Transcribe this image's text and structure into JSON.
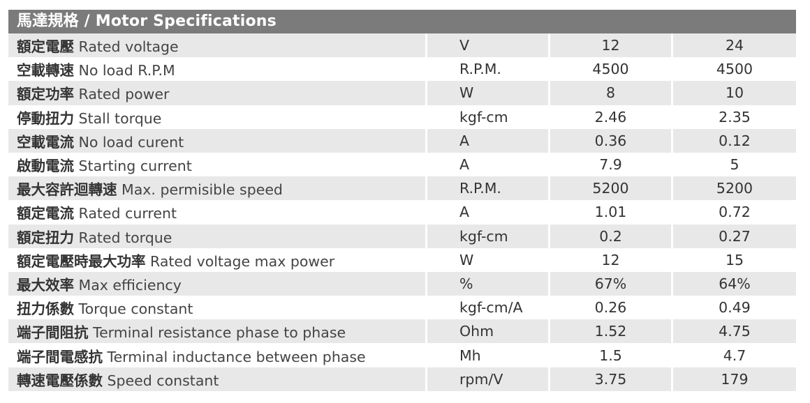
{
  "title": "馬達規格 / Motor Specifications",
  "rows": [
    {
      "zh": "額定電壓",
      "en": "Rated voltage",
      "unit": "V",
      "v1": "12",
      "v2": "24"
    },
    {
      "zh": "空載轉速",
      "en": "No load R.P.M",
      "unit": "R.P.M.",
      "v1": "4500",
      "v2": "4500"
    },
    {
      "zh": "額定功率",
      "en": "Rated power",
      "unit": "W",
      "v1": "8",
      "v2": "10"
    },
    {
      "zh": "停動扭力",
      "en": "Stall torque",
      "unit": "kgf-cm",
      "v1": "2.46",
      "v2": "2.35"
    },
    {
      "zh": "空載電流",
      "en": "No load curent",
      "unit": "A",
      "v1": "0.36",
      "v2": "0.12"
    },
    {
      "zh": "啟動電流",
      "en": "Starting current",
      "unit": "A",
      "v1": "7.9",
      "v2": "5"
    },
    {
      "zh": "最大容許迴轉速",
      "en": "Max. permisible speed",
      "unit": "R.P.M.",
      "v1": "5200",
      "v2": "5200"
    },
    {
      "zh": "額定電流",
      "en": "Rated current",
      "unit": "A",
      "v1": "1.01",
      "v2": "0.72"
    },
    {
      "zh": "額定扭力",
      "en": "Rated torque",
      "unit": "kgf-cm",
      "v1": "0.2",
      "v2": "0.27"
    },
    {
      "zh": "額定電壓時最大功率",
      "en": "Rated voltage max power",
      "unit": "W",
      "v1": "12",
      "v2": "15"
    },
    {
      "zh": "最大效率",
      "en": "Max efficiency",
      "unit": "%",
      "v1": "67%",
      "v2": "64%"
    },
    {
      "zh": "扭力係數",
      "en": "Torque constant",
      "unit": "kgf-cm/A",
      "v1": "0.26",
      "v2": "0.49"
    },
    {
      "zh": "端子間阻抗",
      "en": "Terminal resistance phase to phase",
      "unit": "Ohm",
      "v1": "1.52",
      "v2": "4.75"
    },
    {
      "zh": "端子間電感抗",
      "en": "Terminal inductance between phase",
      "unit": "Mh",
      "v1": "1.5",
      "v2": "4.7"
    },
    {
      "zh": "轉速電壓係數",
      "en": "Speed constant",
      "unit": "rpm/V",
      "v1": "3.75",
      "v2": "179"
    }
  ],
  "colors": {
    "header_bg": "#7b7b7b",
    "header_text": "#ffffff",
    "row_shade": "#e8e8e8",
    "text": "#333333"
  }
}
